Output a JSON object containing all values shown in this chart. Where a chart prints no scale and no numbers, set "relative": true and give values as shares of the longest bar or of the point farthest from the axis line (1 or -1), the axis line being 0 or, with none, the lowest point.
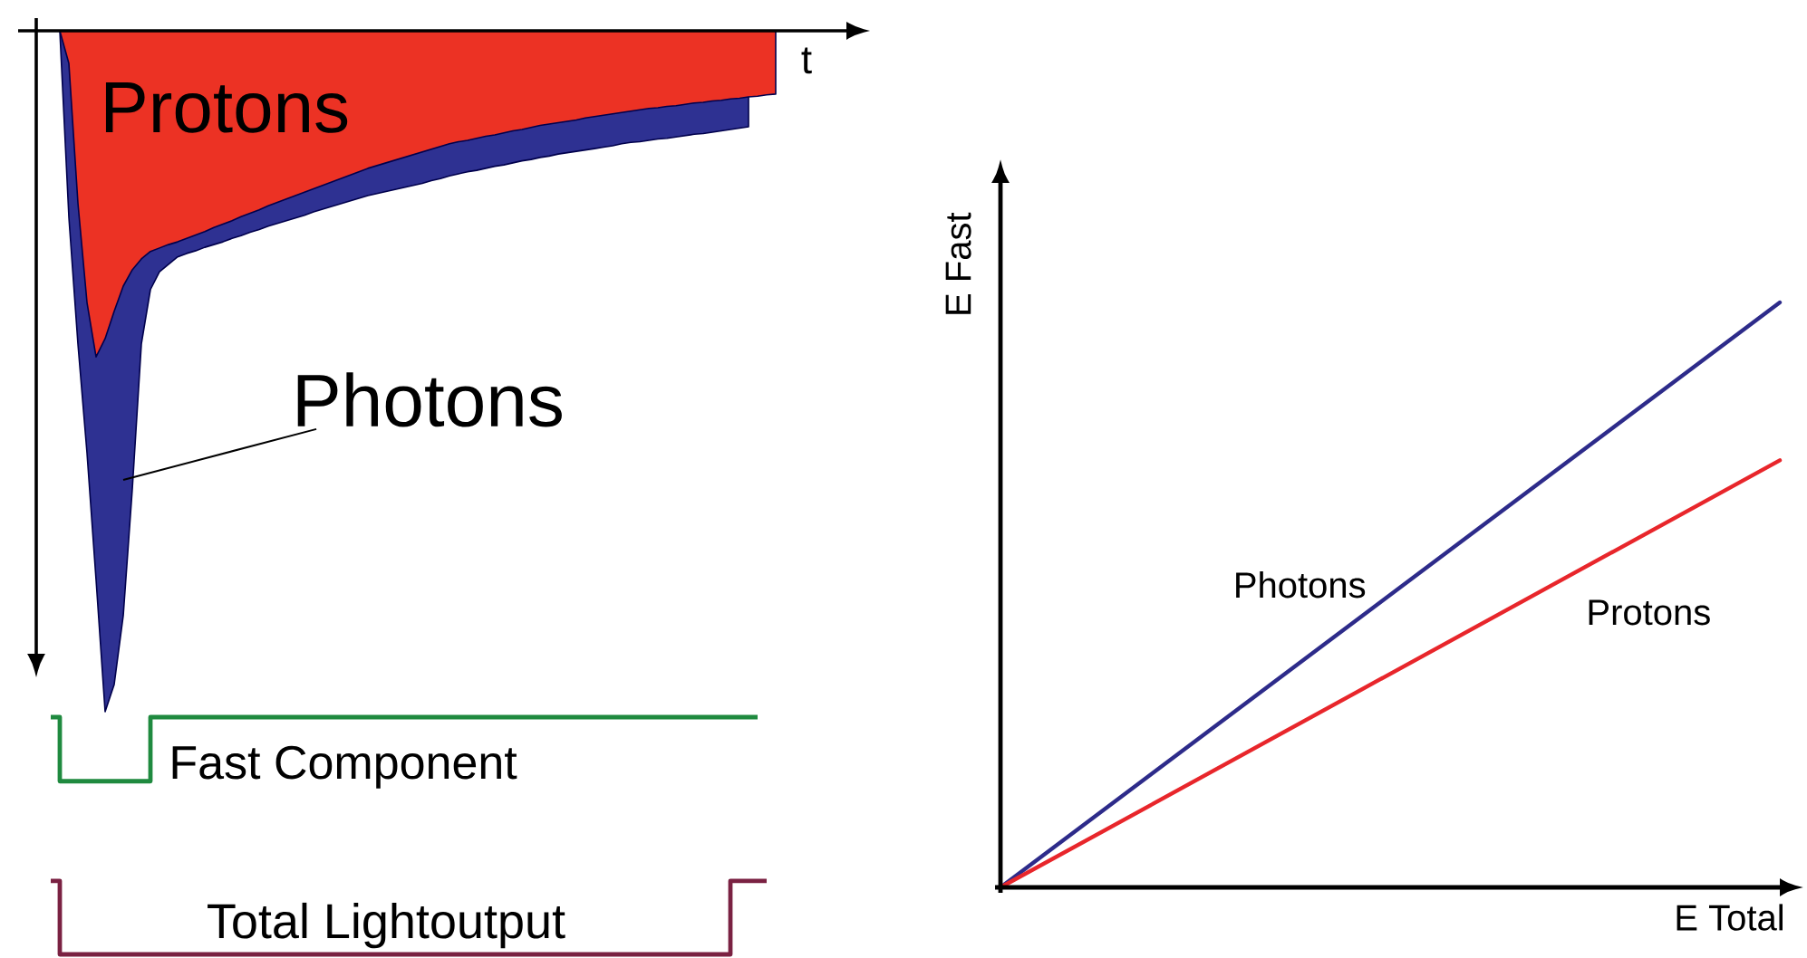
{
  "chart_data": [
    {
      "type": "area",
      "xlabel": "t",
      "relative": true,
      "categories": [
        null,
        null,
        null,
        null,
        null,
        null,
        null,
        null,
        null,
        null,
        null,
        null,
        null,
        null,
        null,
        null,
        null,
        null,
        null,
        null,
        null,
        null,
        null,
        null,
        null,
        null,
        null,
        null,
        null,
        null,
        null,
        null,
        null,
        null,
        null,
        null,
        null,
        null,
        null,
        null,
        null,
        null,
        null,
        null,
        null,
        null,
        null,
        null,
        null,
        null,
        null,
        null,
        null,
        null,
        null,
        null,
        null,
        null,
        null,
        null,
        null,
        null,
        null,
        null,
        null,
        null,
        null,
        null,
        null,
        null,
        null,
        null,
        null,
        null,
        null,
        null,
        null,
        null,
        null,
        null,
        null
      ],
      "series": [
        {
          "name": "Photons",
          "color": "#2e3192",
          "values": [
            0,
            0,
            -0.274,
            -0.46,
            -0.62,
            -0.806,
            -1,
            -0.96,
            -0.859,
            -0.673,
            -0.46,
            -0.38,
            -0.354,
            -0.343,
            -0.332,
            -0.327,
            -0.323,
            -0.318,
            -0.314,
            -0.31,
            -0.305,
            -0.301,
            -0.296,
            -0.292,
            -0.287,
            -0.283,
            -0.279,
            -0.275,
            -0.271,
            -0.266,
            -0.262,
            -0.258,
            -0.254,
            -0.25,
            -0.246,
            -0.242,
            -0.239,
            -0.236,
            -0.233,
            -0.23,
            -0.227,
            -0.224,
            -0.22,
            -0.217,
            -0.213,
            -0.21,
            -0.207,
            -0.205,
            -0.202,
            -0.199,
            -0.197,
            -0.194,
            -0.191,
            -0.189,
            -0.186,
            -0.184,
            -0.181,
            -0.179,
            -0.177,
            -0.175,
            -0.173,
            -0.171,
            -0.169,
            -0.166,
            -0.164,
            -0.163,
            -0.161,
            -0.159,
            -0.158,
            -0.156,
            -0.154,
            -0.152,
            -0.151,
            -0.149,
            -0.147,
            -0.145,
            -0.143,
            -0.141,
            null,
            null,
            null
          ]
        },
        {
          "name": "Protons",
          "color": "#ec3224",
          "values": [
            0,
            0,
            -0.048,
            -0.253,
            -0.399,
            -0.479,
            -0.452,
            -0.412,
            -0.375,
            -0.351,
            -0.335,
            -0.324,
            -0.319,
            -0.314,
            -0.31,
            -0.305,
            -0.3,
            -0.295,
            -0.289,
            -0.284,
            -0.279,
            -0.273,
            -0.268,
            -0.263,
            -0.257,
            -0.252,
            -0.247,
            -0.242,
            -0.237,
            -0.232,
            -0.227,
            -0.222,
            -0.217,
            -0.212,
            -0.207,
            -0.202,
            -0.198,
            -0.194,
            -0.19,
            -0.186,
            -0.182,
            -0.178,
            -0.174,
            -0.17,
            -0.166,
            -0.163,
            -0.161,
            -0.158,
            -0.155,
            -0.153,
            -0.15,
            -0.147,
            -0.145,
            -0.142,
            -0.139,
            -0.137,
            -0.135,
            -0.133,
            -0.131,
            -0.128,
            -0.126,
            -0.124,
            -0.122,
            -0.12,
            -0.118,
            -0.116,
            -0.114,
            -0.113,
            -0.111,
            -0.11,
            -0.108,
            -0.106,
            -0.105,
            -0.103,
            -0.102,
            -0.1,
            -0.099,
            -0.097,
            -0.096,
            -0.094,
            -0.093
          ]
        }
      ]
    },
    {
      "type": "line",
      "xlabel": "E Total",
      "ylabel": "E Fast",
      "relative": true,
      "categories": [
        null,
        null
      ],
      "series": [
        {
          "name": "Photons",
          "color": "#2d2b8a",
          "values": [
            0,
            1
          ]
        },
        {
          "name": "Protons",
          "color": "#e8262b",
          "values": [
            0,
            0.73
          ]
        }
      ]
    },
    {
      "type": "step",
      "relative": true,
      "categories": [
        null,
        null,
        null,
        null,
        null,
        null,
        null,
        null,
        null,
        null,
        null,
        null,
        null,
        null,
        null,
        null,
        null,
        null,
        null,
        null,
        null,
        null,
        null,
        null,
        null,
        null,
        null,
        null,
        null,
        null,
        null,
        null,
        null,
        null,
        null,
        null,
        null,
        null,
        null,
        null,
        null,
        null,
        null,
        null,
        null,
        null,
        null,
        null,
        null,
        null,
        null,
        null,
        null,
        null,
        null,
        null,
        null,
        null,
        null,
        null,
        null,
        null,
        null,
        null,
        null,
        null,
        null,
        null,
        null,
        null,
        null,
        null,
        null,
        null,
        null,
        null,
        null,
        null,
        null,
        null,
        null
      ],
      "series": [
        {
          "name": "Fast Component",
          "color": "#1f8a3f",
          "values": [
            1,
            0.73,
            0.73,
            0.73,
            0.73,
            0.73,
            0.73,
            0.73,
            0.73,
            0.73,
            0.73,
            1,
            1,
            1,
            1,
            1,
            1,
            1,
            1,
            1,
            1,
            1,
            1,
            1,
            1,
            1,
            1,
            1,
            1,
            1,
            1,
            1,
            1,
            1,
            1,
            1,
            1,
            1,
            1,
            1,
            1,
            1,
            1,
            1,
            1,
            1,
            1,
            1,
            1,
            1,
            1,
            1,
            1,
            1,
            1,
            1,
            1,
            1,
            1,
            1,
            1,
            1,
            1,
            1,
            1,
            1,
            1,
            1,
            1,
            1,
            1,
            1,
            1,
            1,
            1,
            1,
            1,
            1,
            1,
            null,
            null
          ]
        },
        {
          "name": "Total Lightoutput",
          "color": "#7a2142",
          "values": [
            0.31,
            0,
            0,
            0,
            0,
            0,
            0,
            0,
            0,
            0,
            0,
            0,
            0,
            0,
            0,
            0,
            0,
            0,
            0,
            0,
            0,
            0,
            0,
            0,
            0,
            0,
            0,
            0,
            0,
            0,
            0,
            0,
            0,
            0,
            0,
            0,
            0,
            0,
            0,
            0,
            0,
            0,
            0,
            0,
            0,
            0,
            0,
            0,
            0,
            0,
            0,
            0,
            0,
            0,
            0,
            0,
            0,
            0,
            0,
            0,
            0,
            0,
            0,
            0,
            0,
            0,
            0,
            0,
            0,
            0,
            0,
            0,
            0,
            0,
            0,
            0.31,
            0.31,
            0.31,
            0.31,
            0.31,
            null
          ]
        }
      ]
    }
  ]
}
